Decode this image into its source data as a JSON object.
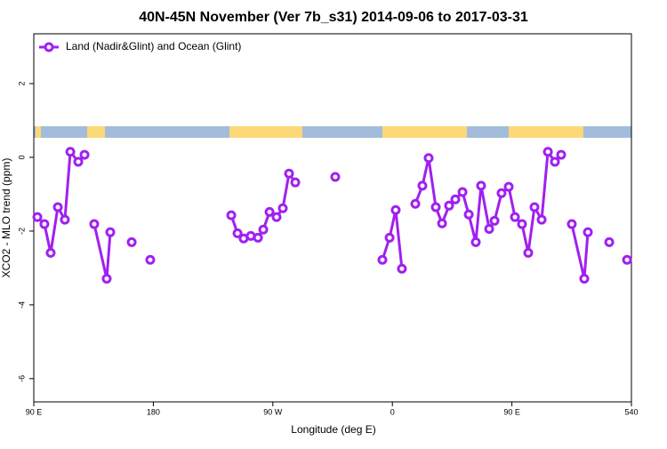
{
  "chart_data": {
    "type": "line",
    "title": "40N-45N November (Ver 7b_s31)   2014-09-06 to 2017-03-31",
    "xlabel": "Longitude (deg E)",
    "ylabel": "XCO2 - MLO trend (ppm)",
    "x": [
      92.7,
      98,
      102.7,
      108.1,
      113.4,
      117.5,
      123.5,
      128.2,
      null,
      135.5,
      144.9,
      147.6,
      null,
      163.7,
      null,
      177.7,
      null,
      238.7,
      243.4,
      248,
      253.4,
      258.8,
      262.8,
      267.5,
      272.8,
      277.5,
      282.2,
      286.9,
      null,
      317,
      null,
      352.5,
      357.9,
      362.5,
      367.2,
      null,
      377.3,
      382.6,
      387.3,
      392.7,
      397.4,
      402.7,
      407.4,
      412.8,
      417.5,
      422.8,
      426.8,
      432.9,
      436.9,
      442.2,
      447.6,
      452.3,
      457.6,
      462.3,
      467,
      472.4,
      477.1,
      482.4,
      487.1,
      null,
      495.1,
      504.5,
      507.2,
      null,
      523.3,
      null,
      536.7
    ],
    "series": [
      {
        "name": "Land (Nadir&Glint) and Ocean (Glint)",
        "color": "#a020f0",
        "values": [
          -1.62,
          -1.81,
          -2.59,
          -1.35,
          -1.69,
          0.15,
          -0.12,
          0.07,
          null,
          -1.81,
          -3.29,
          -2.03,
          null,
          -2.3,
          null,
          -2.78,
          null,
          -1.57,
          -2.06,
          -2.2,
          -2.13,
          -2.18,
          -1.96,
          -1.48,
          -1.62,
          -1.38,
          -0.44,
          -0.68,
          null,
          -0.53,
          null,
          -2.78,
          -2.18,
          -1.43,
          -3.02,
          null,
          -1.26,
          -0.77,
          -0.02,
          -1.35,
          -1.79,
          -1.31,
          -1.14,
          -0.94,
          -1.55,
          -2.3,
          -0.77,
          -1.94,
          -1.72,
          -0.97,
          -0.8,
          -1.62,
          -1.81,
          -2.59,
          -1.35,
          -1.69,
          0.15,
          -0.12,
          0.07,
          null,
          -1.81,
          -3.29,
          -2.03,
          null,
          -2.3,
          null,
          -2.78
        ]
      }
    ],
    "xlim": [
      90,
      540
    ],
    "xticks": [
      {
        "value": 90,
        "label": "90 E"
      },
      180,
      {
        "value": 270,
        "label": "90 W"
      },
      {
        "value": 360,
        "label": "0"
      },
      {
        "value": 450,
        "label": "90 E"
      },
      540
    ],
    "ylim": [
      -6.63,
      3.35
    ],
    "yticks": [
      -6,
      -4,
      -2,
      0,
      2
    ],
    "legend": "top-left"
  }
}
